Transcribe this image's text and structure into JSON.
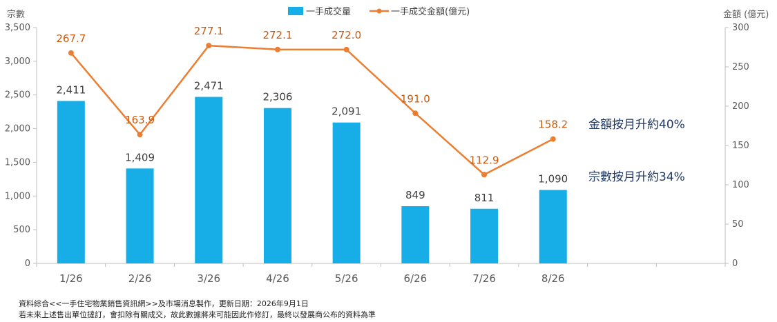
{
  "colors": {
    "bar": "#17aee8",
    "line": "#ec7d31",
    "line_label": "#c55a11",
    "annotation": "#1f3864",
    "axis": "#bfbfbf",
    "tick_text": "#595959"
  },
  "legend": {
    "bar_label": "一手成交量",
    "line_label": "一手成交金額(億元)"
  },
  "annotations": {
    "amount_change": "金額按月升約40%",
    "count_change": "宗數按月升約34%"
  },
  "footnotes": {
    "line1": "資料綜合<<一手住宅物業銷售資訊網>>及市場消息製作，更新日期：2026年9月1日",
    "line2": "若未來上述售出單位撻訂，會扣除有關成交，故此數據將來可能因此作修訂，最終以發展商公布的資料為準"
  },
  "chart_data": {
    "type": "bar+line",
    "categories": [
      "1/26",
      "2/26",
      "3/26",
      "4/26",
      "5/26",
      "6/26",
      "7/26",
      "8/26"
    ],
    "series": [
      {
        "name": "一手成交量",
        "type": "bar",
        "axis": "left",
        "values": [
          2411,
          1409,
          2471,
          2306,
          2091,
          849,
          811,
          1090
        ],
        "labels": [
          "2,411",
          "1,409",
          "2,471",
          "2,306",
          "2,091",
          "849",
          "811",
          "1,090"
        ]
      },
      {
        "name": "一手成交金額(億元)",
        "type": "line",
        "axis": "right",
        "values": [
          267.7,
          163.9,
          277.1,
          272.1,
          272.0,
          191.0,
          112.9,
          158.2
        ],
        "labels": [
          "267.7",
          "163.9",
          "277.1",
          "272.1",
          "272.0",
          "191.0",
          "112.9",
          "158.2"
        ]
      }
    ],
    "y_left": {
      "label": "宗數",
      "range": [
        0,
        3500
      ],
      "ticks": [
        0,
        500,
        1000,
        1500,
        2000,
        2500,
        3000,
        3500
      ],
      "tick_labels": [
        "0",
        "500",
        "1,000",
        "1,500",
        "2,000",
        "2,500",
        "3,000",
        "3,500"
      ]
    },
    "y_right": {
      "label": "金額 (億元)",
      "range": [
        0,
        300
      ],
      "ticks": [
        0,
        50,
        100,
        150,
        200,
        250,
        300
      ],
      "tick_labels": [
        "0",
        "50",
        "100",
        "150",
        "200",
        "250",
        "300"
      ]
    },
    "slots": 10,
    "grid": false,
    "legend_position": "top-center"
  }
}
